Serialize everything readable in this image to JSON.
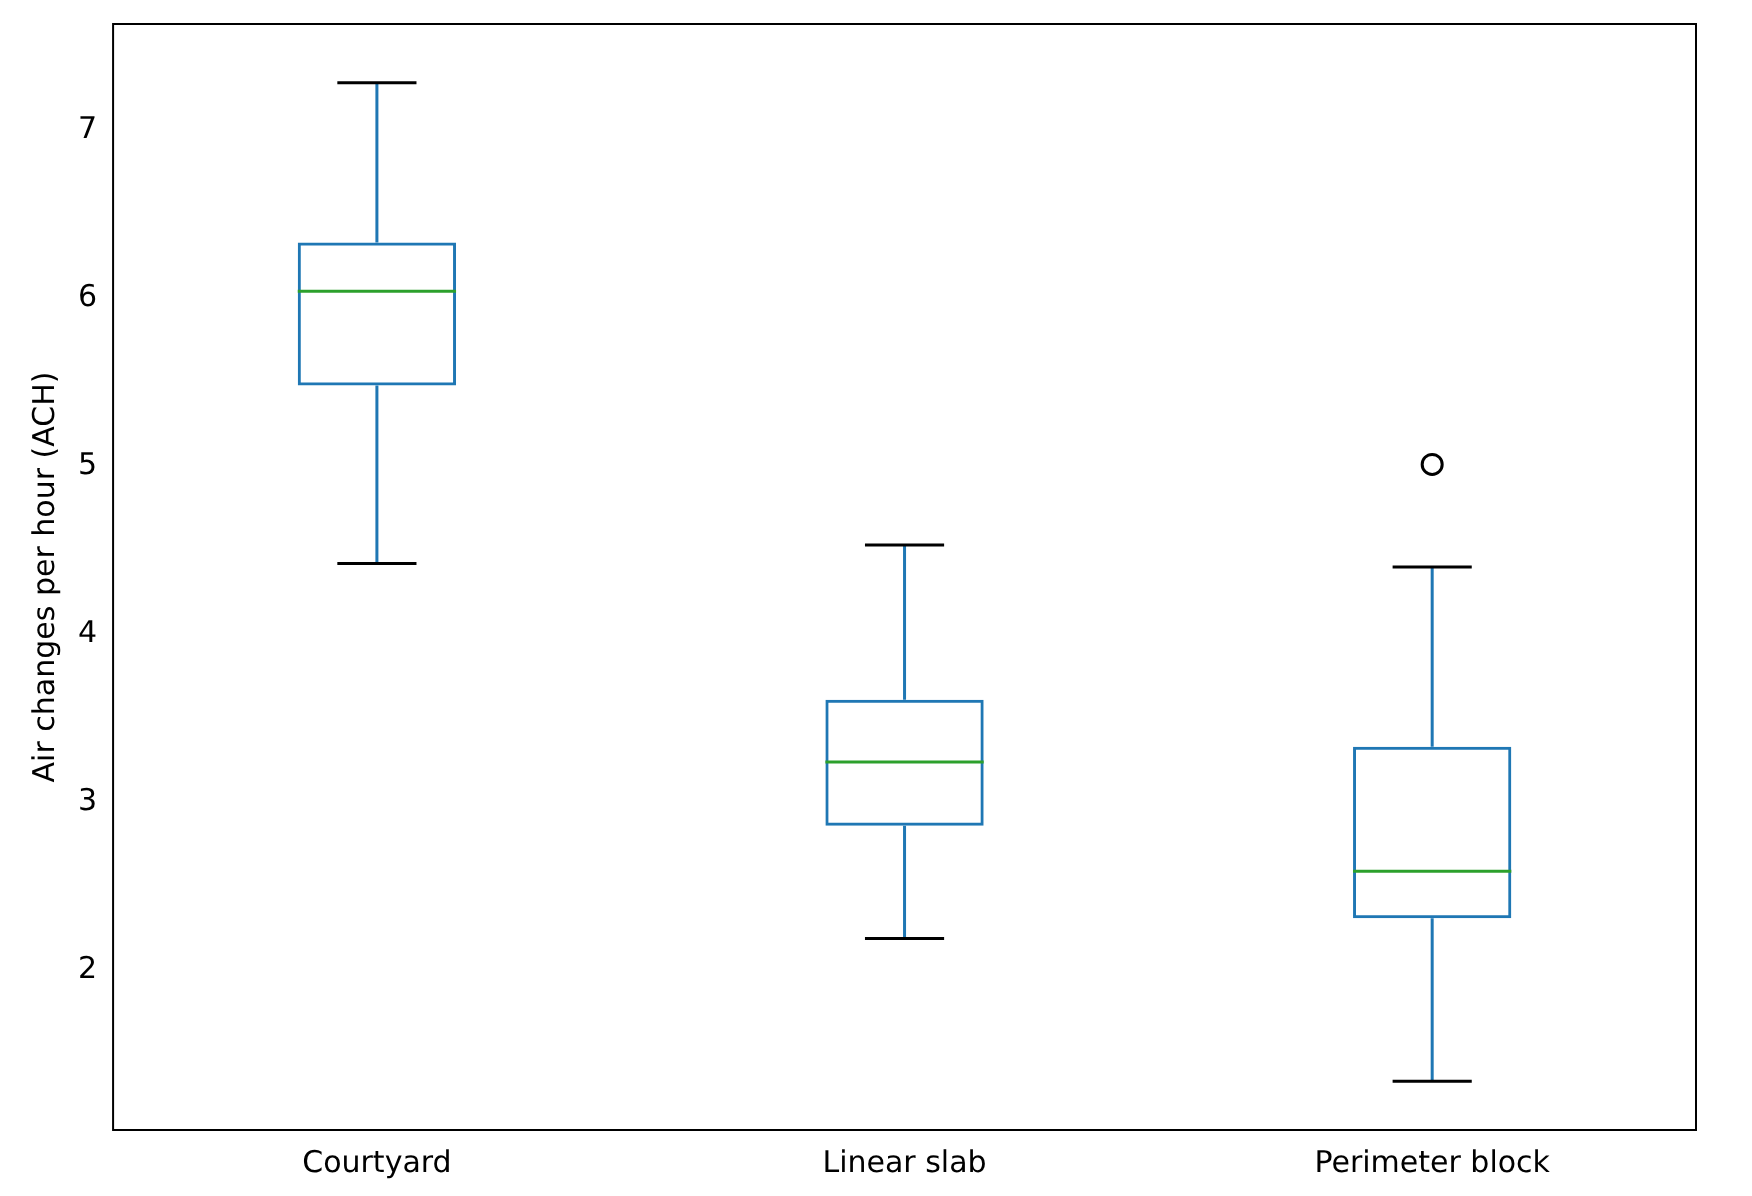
{
  "chart_data": {
    "type": "box",
    "ylabel": "Air changes per hour (ACH)",
    "categories": [
      "Courtyard",
      "Linear slab",
      "Perimeter block"
    ],
    "series": [
      {
        "color": "#1f77b4",
        "boxes": [
          {
            "low": 4.42,
            "q1": 5.48,
            "median": 6.04,
            "q3": 6.33,
            "high": 7.28
          },
          {
            "low": 2.19,
            "q1": 2.86,
            "median": 3.24,
            "q3": 3.61,
            "high": 4.53
          },
          {
            "low": 1.34,
            "q1": 2.31,
            "median": 2.59,
            "q3": 3.33,
            "high": 4.4,
            "outliers": [
              5.01
            ]
          }
        ]
      }
    ],
    "ylim": [
      1.05,
      7.63
    ],
    "yticks": [
      2,
      3,
      4,
      5,
      6,
      7
    ],
    "grid": false,
    "legend": false
  }
}
